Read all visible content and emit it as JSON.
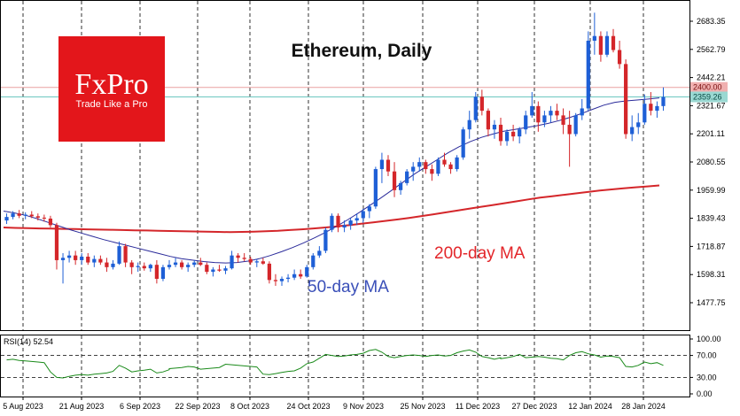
{
  "logo": {
    "brand": "FxPro",
    "tagline": "Trade Like a Pro",
    "color": "#e3161b"
  },
  "chart_data": {
    "type": "candlestick",
    "title": "Ethereum, Daily",
    "colors": {
      "up": "#1e5fd6",
      "down": "#d4262a",
      "ma50": "#2a2a9a",
      "ma200": "#d4262a",
      "rsi": "#1a8a1a"
    },
    "y_ticks": [
      "2683.35",
      "2562.79",
      "2442.21",
      "2321.67",
      "2201.11",
      "2080.55",
      "1959.99",
      "1839.43",
      "1718.87",
      "1598.31",
      "1477.75"
    ],
    "price_labels": {
      "current": "2400.00",
      "price": "2359.26"
    },
    "x_ticks": [
      "5 Aug 2023",
      "21 Aug 2023",
      "6 Sep 2023",
      "22 Sep 2023",
      "8 Oct 2023",
      "24 Oct 2023",
      "9 Nov 2023",
      "25 Nov 2023",
      "11 Dec 2023",
      "27 Dec 2023",
      "12 Jan 2024",
      "28 Jan 2024"
    ],
    "ylim": [
      1410,
      2760
    ],
    "series_labels": {
      "ma50": "50-day MA",
      "ma200": "200-day MA"
    },
    "rsi": {
      "label": "RSI(14) 52.54",
      "ticks": [
        "100.00",
        "70.00",
        "30.00",
        "0.00"
      ],
      "ylim": [
        0,
        100
      ]
    },
    "candles": [
      [
        1830,
        1860,
        1815,
        1845
      ],
      [
        1845,
        1870,
        1835,
        1860
      ],
      [
        1860,
        1875,
        1840,
        1850
      ],
      [
        1850,
        1865,
        1835,
        1855
      ],
      [
        1855,
        1870,
        1840,
        1848
      ],
      [
        1848,
        1860,
        1830,
        1842
      ],
      [
        1842,
        1855,
        1825,
        1838
      ],
      [
        1838,
        1850,
        1800,
        1810
      ],
      [
        1810,
        1820,
        1620,
        1660
      ],
      [
        1660,
        1690,
        1560,
        1670
      ],
      [
        1670,
        1700,
        1650,
        1680
      ],
      [
        1680,
        1700,
        1640,
        1660
      ],
      [
        1660,
        1690,
        1640,
        1675
      ],
      [
        1675,
        1690,
        1640,
        1650
      ],
      [
        1650,
        1680,
        1630,
        1665
      ],
      [
        1665,
        1680,
        1640,
        1650
      ],
      [
        1650,
        1670,
        1610,
        1630
      ],
      [
        1630,
        1660,
        1620,
        1645
      ],
      [
        1645,
        1740,
        1640,
        1720
      ],
      [
        1720,
        1730,
        1630,
        1650
      ],
      [
        1650,
        1660,
        1600,
        1630
      ],
      [
        1630,
        1650,
        1610,
        1635
      ],
      [
        1635,
        1650,
        1615,
        1625
      ],
      [
        1625,
        1645,
        1610,
        1640
      ],
      [
        1640,
        1660,
        1560,
        1580
      ],
      [
        1580,
        1640,
        1570,
        1630
      ],
      [
        1630,
        1660,
        1620,
        1640
      ],
      [
        1640,
        1670,
        1630,
        1650
      ],
      [
        1650,
        1660,
        1620,
        1630
      ],
      [
        1630,
        1650,
        1610,
        1640
      ],
      [
        1640,
        1660,
        1630,
        1650
      ],
      [
        1650,
        1670,
        1635,
        1640
      ],
      [
        1640,
        1650,
        1600,
        1610
      ],
      [
        1610,
        1630,
        1590,
        1620
      ],
      [
        1620,
        1640,
        1610,
        1615
      ],
      [
        1615,
        1635,
        1600,
        1625
      ],
      [
        1625,
        1700,
        1620,
        1680
      ],
      [
        1680,
        1690,
        1650,
        1670
      ],
      [
        1670,
        1690,
        1655,
        1665
      ],
      [
        1665,
        1675,
        1640,
        1650
      ],
      [
        1650,
        1665,
        1630,
        1655
      ],
      [
        1655,
        1670,
        1640,
        1645
      ],
      [
        1645,
        1655,
        1560,
        1575
      ],
      [
        1575,
        1600,
        1550,
        1570
      ],
      [
        1570,
        1590,
        1550,
        1580
      ],
      [
        1580,
        1600,
        1565,
        1585
      ],
      [
        1585,
        1620,
        1575,
        1600
      ],
      [
        1600,
        1620,
        1580,
        1590
      ],
      [
        1590,
        1640,
        1585,
        1630
      ],
      [
        1630,
        1690,
        1620,
        1680
      ],
      [
        1680,
        1720,
        1670,
        1700
      ],
      [
        1700,
        1800,
        1690,
        1790
      ],
      [
        1790,
        1860,
        1780,
        1850
      ],
      [
        1850,
        1860,
        1780,
        1800
      ],
      [
        1800,
        1830,
        1780,
        1810
      ],
      [
        1810,
        1840,
        1790,
        1830
      ],
      [
        1830,
        1860,
        1810,
        1840
      ],
      [
        1840,
        1880,
        1820,
        1870
      ],
      [
        1870,
        1900,
        1840,
        1890
      ],
      [
        1890,
        2060,
        1880,
        2050
      ],
      [
        2050,
        2120,
        1990,
        2090
      ],
      [
        2090,
        2110,
        2020,
        2040
      ],
      [
        2040,
        2080,
        1930,
        1960
      ],
      [
        1960,
        2000,
        1940,
        1990
      ],
      [
        1990,
        2050,
        1980,
        2040
      ],
      [
        2040,
        2080,
        2000,
        2060
      ],
      [
        2060,
        2100,
        2040,
        2080
      ],
      [
        2080,
        2090,
        2030,
        2050
      ],
      [
        2050,
        2070,
        2000,
        2030
      ],
      [
        2030,
        2100,
        2020,
        2090
      ],
      [
        2090,
        2120,
        2060,
        2070
      ],
      [
        2070,
        2080,
        2030,
        2050
      ],
      [
        2050,
        2110,
        2040,
        2100
      ],
      [
        2100,
        2230,
        2090,
        2220
      ],
      [
        2220,
        2300,
        2180,
        2260
      ],
      [
        2260,
        2380,
        2250,
        2360
      ],
      [
        2360,
        2390,
        2280,
        2300
      ],
      [
        2300,
        2310,
        2190,
        2220
      ],
      [
        2220,
        2260,
        2180,
        2240
      ],
      [
        2240,
        2270,
        2150,
        2170
      ],
      [
        2170,
        2220,
        2150,
        2210
      ],
      [
        2210,
        2240,
        2170,
        2190
      ],
      [
        2190,
        2230,
        2160,
        2220
      ],
      [
        2220,
        2300,
        2200,
        2280
      ],
      [
        2280,
        2380,
        2270,
        2320
      ],
      [
        2320,
        2340,
        2210,
        2250
      ],
      [
        2250,
        2300,
        2230,
        2280
      ],
      [
        2280,
        2320,
        2250,
        2300
      ],
      [
        2300,
        2330,
        2260,
        2280
      ],
      [
        2280,
        2310,
        2200,
        2240
      ],
      [
        2240,
        2300,
        2060,
        2200
      ],
      [
        2200,
        2290,
        2190,
        2280
      ],
      [
        2280,
        2350,
        2260,
        2310
      ],
      [
        2310,
        2640,
        2300,
        2600
      ],
      [
        2600,
        2720,
        2540,
        2620
      ],
      [
        2620,
        2640,
        2510,
        2540
      ],
      [
        2540,
        2640,
        2530,
        2620
      ],
      [
        2620,
        2650,
        2550,
        2560
      ],
      [
        2560,
        2600,
        2480,
        2500
      ],
      [
        2500,
        2520,
        2180,
        2200
      ],
      [
        2200,
        2280,
        2170,
        2230
      ],
      [
        2230,
        2290,
        2200,
        2250
      ],
      [
        2250,
        2370,
        2240,
        2330
      ],
      [
        2330,
        2380,
        2280,
        2300
      ],
      [
        2300,
        2340,
        2270,
        2320
      ],
      [
        2320,
        2400,
        2300,
        2359
      ]
    ],
    "ma50": [
      1870,
      1862,
      1852,
      1838,
      1822,
      1806,
      1790,
      1776,
      1762,
      1748,
      1736,
      1724,
      1712,
      1700,
      1688,
      1676,
      1666,
      1660,
      1654,
      1650,
      1648,
      1650,
      1656,
      1666,
      1680,
      1696,
      1714,
      1734,
      1756,
      1780,
      1806,
      1834,
      1864,
      1896,
      1928,
      1962,
      1996,
      2030,
      2060,
      2090,
      2120,
      2146,
      2168,
      2186,
      2200,
      2212,
      2220,
      2228,
      2236,
      2246,
      2258,
      2272,
      2288,
      2306,
      2324,
      2336,
      2342,
      2346,
      2350,
      2355
    ],
    "ma200": [
      1800,
      1798,
      1797,
      1796,
      1795,
      1794,
      1793,
      1792,
      1791,
      1790,
      1789,
      1788,
      1787,
      1786,
      1785,
      1784,
      1783,
      1782,
      1781,
      1780,
      1781,
      1782,
      1784,
      1786,
      1789,
      1792,
      1796,
      1800,
      1805,
      1810,
      1816,
      1822,
      1828,
      1834,
      1841,
      1848,
      1856,
      1864,
      1872,
      1880,
      1888,
      1896,
      1904,
      1912,
      1920,
      1928,
      1934,
      1940,
      1946,
      1952,
      1958,
      1963,
      1968,
      1972,
      1976,
      1980
    ],
    "rsi_values": [
      62,
      63,
      61,
      60,
      59,
      58,
      57,
      40,
      30,
      29,
      32,
      34,
      35,
      34,
      36,
      37,
      38,
      41,
      52,
      47,
      40,
      42,
      43,
      45,
      38,
      40,
      44,
      46,
      47,
      48,
      50,
      49,
      45,
      46,
      47,
      48,
      54,
      53,
      52,
      51,
      50,
      49,
      36,
      35,
      37,
      39,
      41,
      42,
      47,
      55,
      58,
      65,
      72,
      70,
      68,
      69,
      71,
      72,
      74,
      79,
      81,
      76,
      68,
      66,
      68,
      70,
      71,
      70,
      68,
      70,
      71,
      69,
      70,
      75,
      78,
      80,
      76,
      68,
      66,
      63,
      66,
      64,
      66,
      68,
      72,
      66,
      67,
      68,
      67,
      65,
      64,
      62,
      70,
      75,
      77,
      73,
      71,
      67,
      69,
      68,
      66,
      50,
      49,
      52,
      58,
      55,
      57,
      52
    ]
  }
}
